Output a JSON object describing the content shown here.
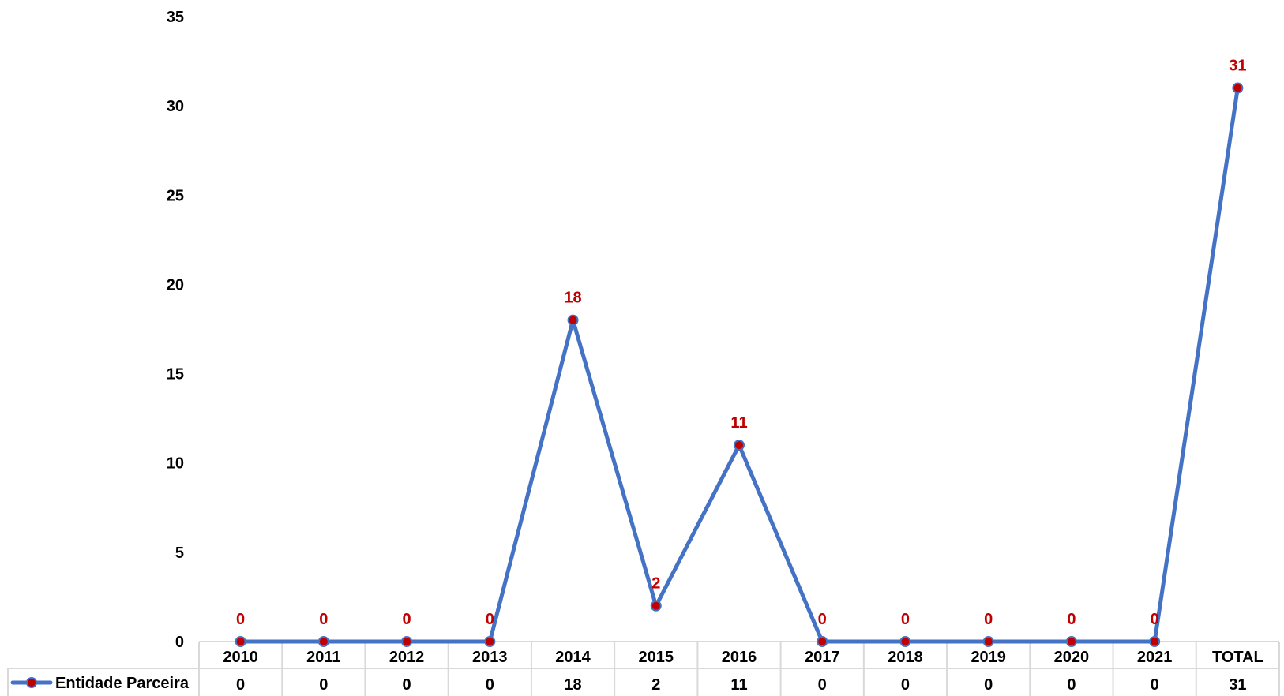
{
  "chart_data": {
    "type": "line",
    "title": "",
    "xlabel": "",
    "ylabel": "",
    "categories": [
      "2010",
      "2011",
      "2012",
      "2013",
      "2014",
      "2015",
      "2016",
      "2017",
      "2018",
      "2019",
      "2020",
      "2021",
      "TOTAL"
    ],
    "series": [
      {
        "name": "Entidade Parceira",
        "values": [
          0,
          0,
          0,
          0,
          18,
          2,
          11,
          0,
          0,
          0,
          0,
          0,
          31
        ]
      }
    ],
    "ylim": [
      0,
      35
    ],
    "yticks": [
      0,
      5,
      10,
      15,
      20,
      25,
      30,
      35
    ],
    "grid": false,
    "data_table": true,
    "legend": "data-table-left",
    "colors": {
      "line": "#4472C4",
      "marker": "#C00000",
      "label": "#C00000",
      "table_border": "#D9D9D9"
    }
  }
}
